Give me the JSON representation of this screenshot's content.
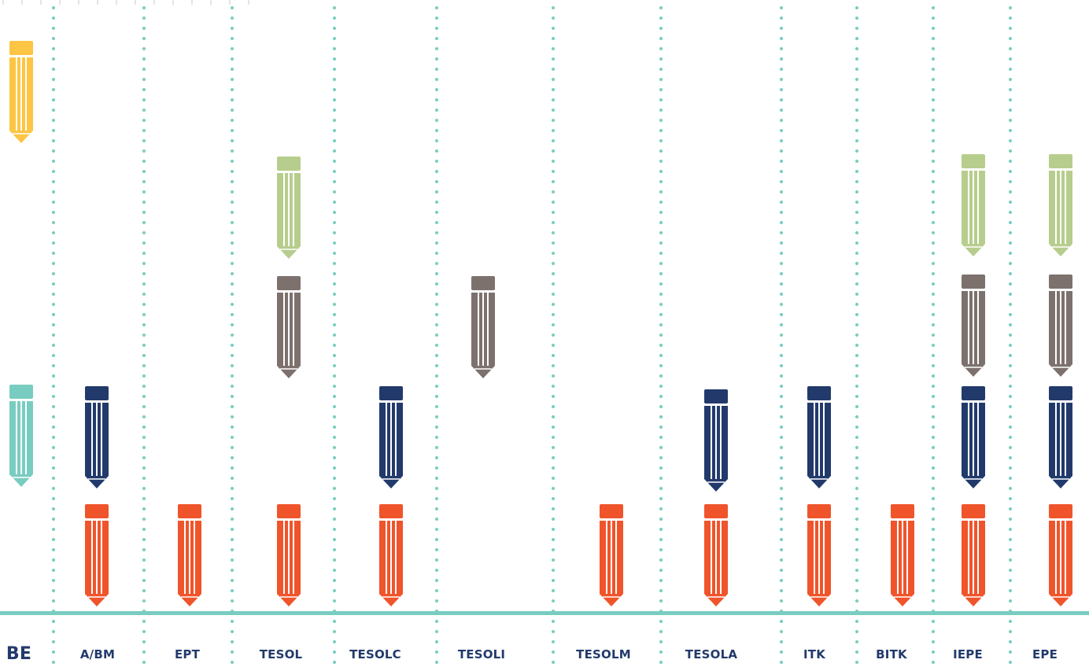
{
  "colors": {
    "divider": "#79cdc0",
    "baseline": "#79cdc0",
    "yellow": "#fcc543",
    "teal": "#79cdc0",
    "navy": "#223a6b",
    "gray": "#7d716e",
    "green": "#b7cd8d",
    "orange": "#f0542b",
    "label": "#223a6b"
  },
  "columns": [
    {
      "label": "BE",
      "pencils": [
        "yellow",
        "teal"
      ]
    },
    {
      "label": "A/BM",
      "pencils": [
        "navy",
        "orange"
      ]
    },
    {
      "label": "EPT",
      "pencils": [
        "orange"
      ]
    },
    {
      "label": "TESOL",
      "pencils": [
        "green",
        "gray",
        "orange"
      ]
    },
    {
      "label": "TESOLC",
      "pencils": [
        "navy",
        "orange"
      ]
    },
    {
      "label": "TESOLI",
      "pencils": [
        "gray"
      ]
    },
    {
      "label": "TESOLM",
      "pencils": [
        "orange"
      ]
    },
    {
      "label": "TESOLA",
      "pencils": [
        "navy",
        "orange"
      ]
    },
    {
      "label": "ITK",
      "pencils": [
        "navy",
        "orange"
      ]
    },
    {
      "label": "BITK",
      "pencils": [
        "orange"
      ]
    },
    {
      "label": "IEPE",
      "pencils": [
        "green",
        "gray",
        "navy",
        "orange"
      ]
    },
    {
      "label": "EPE",
      "pencils": [
        "green",
        "gray",
        "navy",
        "orange"
      ]
    }
  ]
}
